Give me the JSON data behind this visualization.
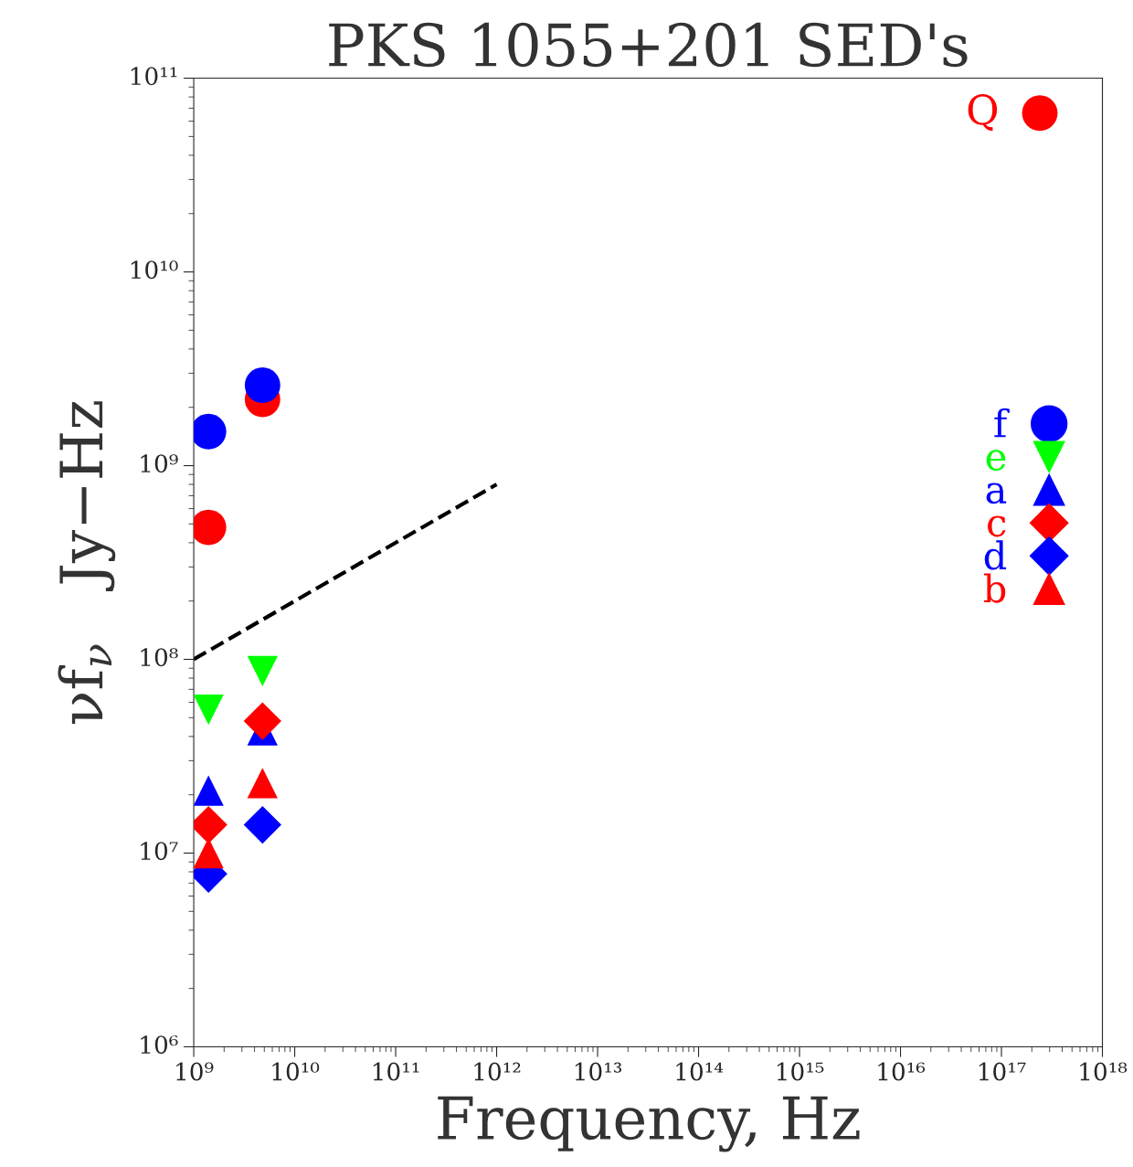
{
  "chart_data": {
    "type": "scatter",
    "title": "PKS 1055+201 SED's",
    "xlabel": "Frequency, Hz",
    "ylabel": "νf$_{ν}$   Jy−Hz",
    "log": "xy",
    "xlim": [
      1000000000.0,
      1e+18
    ],
    "ylim": [
      1000000.0,
      100000000000.0
    ],
    "xticks": [
      {
        "value": 1000000000.0,
        "label": "10⁹"
      },
      {
        "value": 10000000000.0,
        "label": "10¹⁰"
      },
      {
        "value": 100000000000.0,
        "label": "10¹¹"
      },
      {
        "value": 1000000000000.0,
        "label": "10¹²"
      },
      {
        "value": 10000000000000.0,
        "label": "10¹³"
      },
      {
        "value": 100000000000000.0,
        "label": "10¹⁴"
      },
      {
        "value": 1000000000000000.0,
        "label": "10¹⁵"
      },
      {
        "value": 1e+16,
        "label": "10¹⁶"
      },
      {
        "value": 1e+17,
        "label": "10¹⁷"
      },
      {
        "value": 1e+18,
        "label": "10¹⁸"
      }
    ],
    "yticks": [
      {
        "value": 1000000.0,
        "label": "10⁶"
      },
      {
        "value": 10000000.0,
        "label": "10⁷"
      },
      {
        "value": 100000000.0,
        "label": "10⁸"
      },
      {
        "value": 1000000000.0,
        "label": "10⁹"
      },
      {
        "value": 10000000000.0,
        "label": "10¹⁰"
      },
      {
        "value": 100000000000.0,
        "label": "10¹¹"
      }
    ],
    "grid": false,
    "legend": "right",
    "annotations": [
      "Q"
    ],
    "series": [
      {
        "color": "#ff0000",
        "marker": "circle",
        "x": [
          1400000000.0,
          4800000000.0,
          2.4e+17
        ],
        "values": [
          480000000.0,
          2200000000.0,
          66000000000.0
        ]
      },
      {
        "name": "f",
        "color": "#0000ff",
        "marker": "circle",
        "x": [
          1400000000.0,
          4800000000.0
        ],
        "values": [
          1500000000.0,
          2600000000.0
        ]
      },
      {
        "name": "e",
        "color": "#00ff00",
        "marker": "triangle_down",
        "x": [
          1400000000.0,
          4800000000.0
        ],
        "values": [
          55000000.0,
          87000000.0
        ]
      },
      {
        "name": "a",
        "color": "#0000ff",
        "marker": "triangle",
        "x": [
          1400000000.0,
          4800000000.0
        ],
        "values": [
          21000000.0,
          43000000.0
        ]
      },
      {
        "name": "c",
        "color": "#ff0000",
        "marker": "diamond",
        "x": [
          1400000000.0,
          4800000000.0
        ],
        "values": [
          14000000.0,
          48000000.0
        ]
      },
      {
        "name": "d",
        "color": "#0000ff",
        "marker": "diamond",
        "x": [
          1400000000.0,
          4800000000.0
        ],
        "values": [
          7800000.0,
          14000000.0
        ]
      },
      {
        "name": "b",
        "color": "#ff0000",
        "marker": "triangle",
        "x": [
          1400000000.0,
          4800000000.0
        ],
        "values": [
          10000000.0,
          23000000.0
        ]
      },
      {
        "type": "line",
        "color": "#000000",
        "line_style": "dashed",
        "x": [
          1000000000.0,
          1000000000000.0
        ],
        "values": [
          100000000.0,
          800000000.0
        ]
      }
    ]
  }
}
